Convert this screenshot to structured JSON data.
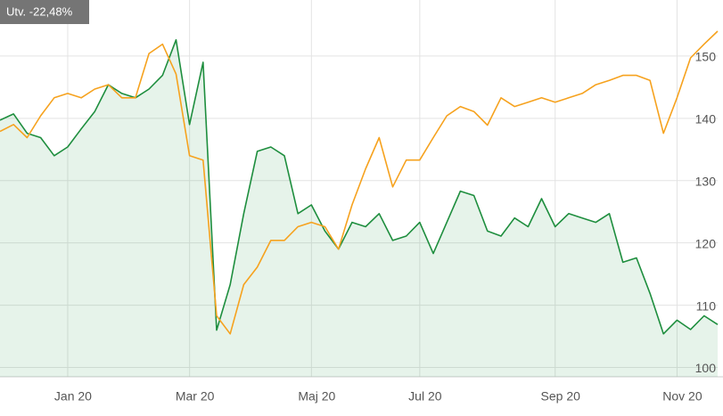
{
  "chart_data": {
    "type": "line",
    "annotation": "Utv. -22,48%",
    "categories": [
      null,
      null,
      null,
      null,
      null,
      "Jan 20",
      null,
      null,
      null,
      null,
      null,
      null,
      null,
      null,
      "Mar 20",
      null,
      null,
      null,
      null,
      null,
      null,
      null,
      null,
      "Maj 20",
      null,
      null,
      null,
      null,
      null,
      null,
      null,
      "Jul 20",
      null,
      null,
      null,
      null,
      null,
      null,
      null,
      null,
      null,
      "Sep 20",
      null,
      null,
      null,
      null,
      null,
      null,
      null,
      null,
      "Nov 20",
      null,
      null,
      null
    ],
    "series": [
      {
        "color": "#1e8e3e",
        "area": true,
        "values": [
          139.7,
          140.7,
          137.6,
          136.9,
          134,
          135.4,
          138.3,
          141.1,
          145.4,
          144,
          143.3,
          144.7,
          146.9,
          152.6,
          139,
          149,
          106,
          113.3,
          124.7,
          134.7,
          135.4,
          134,
          124.7,
          126.1,
          121.9,
          119,
          123.3,
          122.6,
          124.7,
          120.4,
          121.1,
          123.3,
          118.3,
          123.3,
          128.3,
          127.6,
          121.9,
          121.1,
          124,
          122.6,
          127.1,
          122.6,
          124.7,
          124,
          123.3,
          124.7,
          116.9,
          117.6,
          111.9,
          105.4,
          107.6,
          106.1,
          108.3,
          106.9
        ]
      },
      {
        "color": "#f6a21e",
        "area": false,
        "values": [
          137.9,
          139,
          136.9,
          140.4,
          143.3,
          144,
          143.3,
          144.7,
          145.4,
          143.3,
          143.3,
          150.4,
          151.9,
          147.1,
          134,
          133.3,
          108.3,
          105.4,
          113.3,
          116.1,
          120.4,
          120.4,
          122.6,
          123.3,
          122.6,
          119,
          126.1,
          131.9,
          136.9,
          129,
          133.3,
          133.3,
          136.9,
          140.4,
          141.9,
          141.1,
          138.9,
          143.3,
          141.9,
          142.6,
          143.3,
          142.6,
          143.3,
          144,
          145.4,
          146.1,
          146.9,
          146.9,
          146.1,
          137.6,
          143.3,
          149.7,
          151.9,
          154
        ]
      }
    ],
    "ylim": [
      98.5,
      159
    ],
    "yticks": [
      100,
      110,
      120,
      130,
      140,
      150
    ],
    "grid": true
  }
}
